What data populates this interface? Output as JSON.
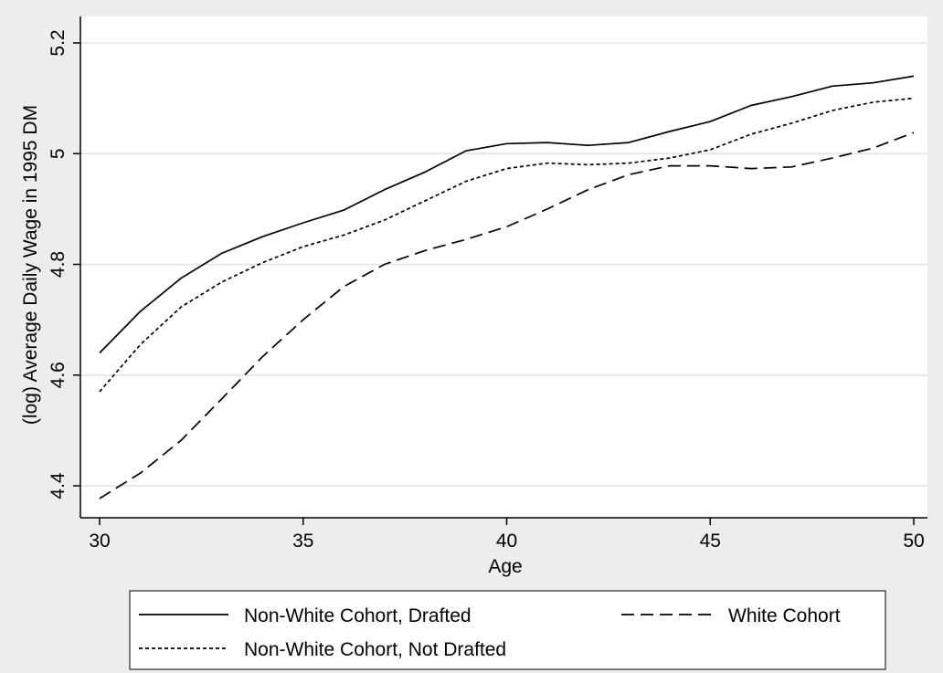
{
  "chart_data": {
    "type": "line",
    "xlabel": "Age",
    "ylabel": "(log) Average Daily Wage in 1995 DM",
    "xlim": [
      30,
      50
    ],
    "ylim": [
      4.4,
      5.2
    ],
    "xticks": [
      "30",
      "35",
      "40",
      "45",
      "50"
    ],
    "yticks": [
      "4.4",
      "4.6",
      "4.8",
      "5",
      "5.2"
    ],
    "grid": true,
    "legend_position": "bottom",
    "x": [
      30,
      31,
      32,
      33,
      34,
      35,
      36,
      37,
      38,
      39,
      40,
      41,
      42,
      43,
      44,
      45,
      46,
      47,
      48,
      49,
      50
    ],
    "series": [
      {
        "name": "Non-White Cohort, Drafted",
        "style": "solid",
        "values": [
          4.64,
          4.715,
          4.775,
          4.82,
          4.85,
          4.875,
          4.898,
          4.935,
          4.967,
          5.005,
          5.018,
          5.02,
          5.015,
          5.02,
          5.04,
          5.058,
          5.087,
          5.103,
          5.122,
          5.128,
          5.14
        ]
      },
      {
        "name": "White Cohort",
        "style": "dashed",
        "values": [
          4.377,
          4.423,
          4.482,
          4.557,
          4.633,
          4.7,
          4.76,
          4.8,
          4.825,
          4.845,
          4.868,
          4.9,
          4.935,
          4.962,
          4.978,
          4.978,
          4.973,
          4.976,
          4.992,
          5.01,
          5.038
        ]
      },
      {
        "name": "Non-White Cohort, Not Drafted",
        "style": "dotted",
        "values": [
          4.57,
          4.655,
          4.723,
          4.768,
          4.803,
          4.832,
          4.853,
          4.88,
          4.915,
          4.95,
          4.973,
          4.983,
          4.98,
          4.983,
          4.992,
          5.007,
          5.035,
          5.055,
          5.078,
          5.093,
          5.1
        ]
      }
    ]
  }
}
